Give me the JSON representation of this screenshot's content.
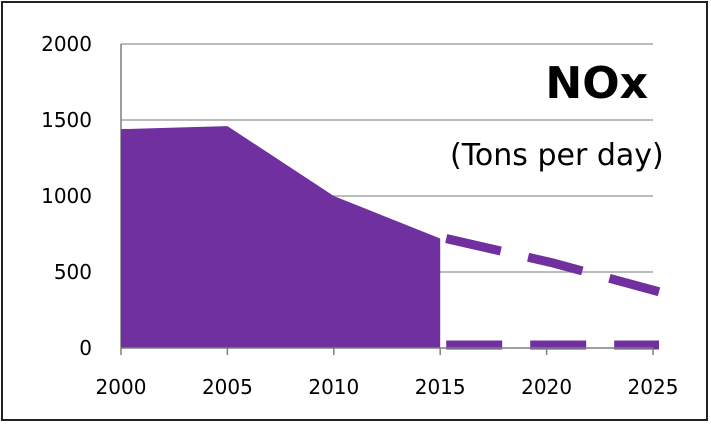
{
  "chart_data": {
    "type": "area",
    "title": "NOx",
    "subtitle": "(Tons per day)",
    "xlabel": "",
    "ylabel": "",
    "x_ticks": [
      "2000",
      "2005",
      "2010",
      "2015",
      "2020",
      "2025"
    ],
    "y_ticks": [
      "0",
      "500",
      "1000",
      "1500",
      "2000"
    ],
    "xlim": [
      2000,
      2025
    ],
    "ylim": [
      0,
      2000
    ],
    "grid": "horizontal",
    "series": [
      {
        "style": "solid-area",
        "x": [
          2000,
          2005,
          2010,
          2015
        ],
        "values": [
          1440,
          1460,
          1000,
          720
        ]
      },
      {
        "style": "dashed-projection",
        "x": [
          2015,
          2020,
          2025
        ],
        "values": [
          720,
          560,
          370
        ]
      },
      {
        "style": "dashed-projection",
        "x": [
          2015,
          2020,
          2025
        ],
        "values": [
          20,
          20,
          20
        ]
      }
    ],
    "colors": {
      "area": "#7030a0",
      "grid": "#a6a6a6",
      "axis": "#7f7f7f"
    }
  }
}
